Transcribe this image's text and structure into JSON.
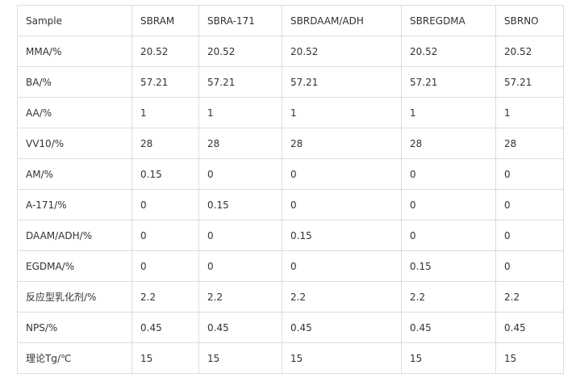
{
  "table": {
    "header": [
      "Sample",
      "SBRAM",
      "SBRA-171",
      "SBRDAAM/ADH",
      "SBREGDMA",
      "SBRNO"
    ],
    "rows": [
      [
        "MMA/%",
        "20.52",
        "20.52",
        "20.52",
        "20.52",
        "20.52"
      ],
      [
        "BA/%",
        "57.21",
        "57.21",
        "57.21",
        "57.21",
        "57.21"
      ],
      [
        "AA/%",
        "1",
        "1",
        "1",
        "1",
        "1"
      ],
      [
        "VV10/%",
        "28",
        "28",
        "28",
        "28",
        "28"
      ],
      [
        "AM/%",
        "0.15",
        "0",
        "0",
        "0",
        "0"
      ],
      [
        "A-171/%",
        "0",
        "0.15",
        "0",
        "0",
        "0"
      ],
      [
        "DAAM/ADH/%",
        "0",
        "0",
        "0.15",
        "0",
        "0"
      ],
      [
        "EGDMA/%",
        "0",
        "0",
        "0",
        "0.15",
        "0"
      ],
      [
        "反应型乳化剂/%",
        "2.2",
        "2.2",
        "2.2",
        "2.2",
        "2.2"
      ],
      [
        "NPS/%",
        "0.45",
        "0.45",
        "0.45",
        "0.45",
        "0.45"
      ],
      [
        "理论Tg/℃",
        "15",
        "15",
        "15",
        "15",
        "15"
      ]
    ]
  }
}
